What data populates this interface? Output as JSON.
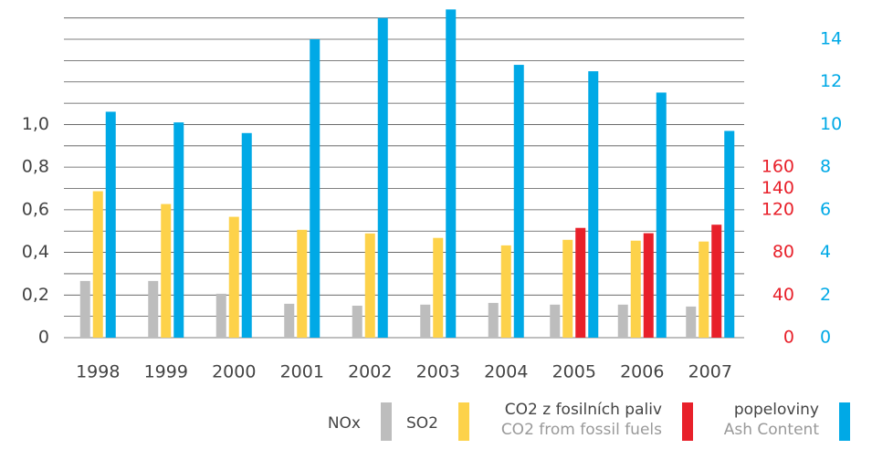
{
  "chart_data": {
    "type": "bar",
    "categories": [
      "1998",
      "1999",
      "2000",
      "2001",
      "2002",
      "2003",
      "2004",
      "2005",
      "2006",
      "2007"
    ],
    "series": [
      {
        "name": "NOx",
        "color": "#bdbdbd",
        "axis": "y",
        "values": [
          0.266,
          0.266,
          0.206,
          0.159,
          0.15,
          0.155,
          0.163,
          0.155,
          0.155,
          0.146
        ]
      },
      {
        "name": "SO2",
        "color": "#fdd24a",
        "axis": "y",
        "values": [
          0.687,
          0.627,
          0.567,
          0.506,
          0.489,
          0.468,
          0.433,
          0.459,
          0.455,
          0.451
        ]
      },
      {
        "name": "CO2 z fosilních paliv",
        "name_en": "CO2 from fossil fuels",
        "color": "#e8202a",
        "axis": "y3",
        "values": [
          null,
          null,
          null,
          null,
          null,
          null,
          null,
          103,
          98,
          106
        ]
      },
      {
        "name": "popeloviny",
        "name_en": "Ash Content",
        "color": "#00a9e6",
        "axis": "y2",
        "values": [
          10.6,
          10.1,
          9.6,
          14.0,
          15.0,
          15.4,
          12.8,
          12.5,
          11.5,
          9.7
        ]
      }
    ],
    "ylim": [
      0,
      1.55
    ],
    "yticks": [
      0,
      {
        "value": 0.2,
        "label": "0,2"
      },
      {
        "value": 0.4,
        "label": "0,4"
      },
      {
        "value": 0.6,
        "label": "0,6"
      },
      {
        "value": 0.8,
        "label": "0,8"
      },
      {
        "value": 1.0,
        "label": "1,0"
      }
    ],
    "y3lim": [
      0,
      310
    ],
    "y3ticks": [
      0,
      40,
      80,
      120,
      140,
      160
    ],
    "y3color": "#e8202a",
    "y2lim": [
      0,
      15.5
    ],
    "y2ticks": [
      0,
      2,
      4,
      6,
      8,
      10,
      12,
      14
    ],
    "y2color": "#00a9e6",
    "grid_yticks": [
      0,
      0.1,
      0.2,
      0.3,
      0.4,
      0.5,
      0.6,
      0.7,
      0.8,
      0.9,
      1.0,
      1.1,
      1.2,
      1.3,
      1.4,
      1.5
    ],
    "grid": true
  }
}
